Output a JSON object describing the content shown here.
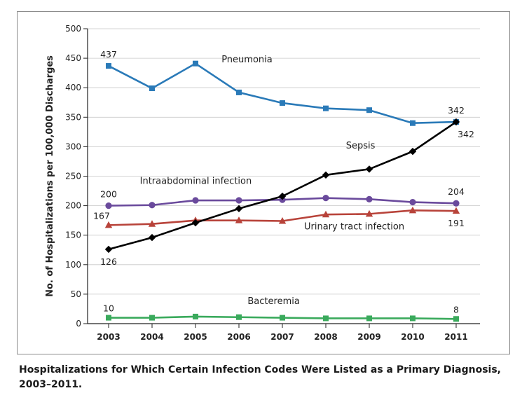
{
  "caption": "Hospitalizations for Which Certain Infection Codes Were Listed as a Primary Diagnosis, 2003–2011.",
  "chart_data": {
    "type": "line",
    "title": "Hospitalizations for Which Certain Infection Codes Were Listed as a Primary Diagnosis, 2003–2011.",
    "xlabel": "",
    "ylabel": "No. of Hospitalizations per 100,000 Discharges",
    "categories": [
      "2003",
      "2004",
      "2005",
      "2006",
      "2007",
      "2008",
      "2009",
      "2010",
      "2011"
    ],
    "ylim": [
      0,
      500
    ],
    "yticks": [
      0,
      50,
      100,
      150,
      200,
      250,
      300,
      350,
      400,
      450,
      500
    ],
    "grid": "horizontal",
    "series": [
      {
        "name": "Pneumonia",
        "color": "#2a7ab8",
        "marker": "square",
        "values": [
          437,
          399,
          441,
          392,
          374,
          365,
          362,
          340,
          342
        ]
      },
      {
        "name": "Sepsis",
        "color": "#000000",
        "marker": "diamond",
        "values": [
          126,
          146,
          171,
          195,
          216,
          252,
          262,
          292,
          342
        ]
      },
      {
        "name": "Intraabdominal infection",
        "color": "#6a4a9c",
        "marker": "circle",
        "values": [
          200,
          201,
          209,
          209,
          210,
          213,
          211,
          206,
          204
        ]
      },
      {
        "name": "Urinary tract infection",
        "color": "#b8433a",
        "marker": "triangle",
        "values": [
          167,
          169,
          175,
          175,
          174,
          185,
          186,
          192,
          191
        ]
      },
      {
        "name": "Bacteremia",
        "color": "#3aaa5c",
        "marker": "square",
        "values": [
          10,
          10,
          12,
          11,
          10,
          9,
          9,
          9,
          8
        ]
      }
    ],
    "data_labels": [
      {
        "text": "437",
        "series": "Pneumonia",
        "x": "2003",
        "value": 437,
        "position": "above"
      },
      {
        "text": "342",
        "series": "Pneumonia",
        "x": "2011",
        "value": 342,
        "position": "above"
      },
      {
        "text": "342",
        "series": "Sepsis",
        "x": "2011",
        "value": 342,
        "position": "below-right"
      },
      {
        "text": "200",
        "series": "Intraabdominal infection",
        "x": "2003",
        "value": 200,
        "position": "above"
      },
      {
        "text": "204",
        "series": "Intraabdominal infection",
        "x": "2011",
        "value": 204,
        "position": "above"
      },
      {
        "text": "167",
        "series": "Urinary tract infection",
        "x": "2003",
        "value": 167,
        "position": "above-left"
      },
      {
        "text": "191",
        "series": "Urinary tract infection",
        "x": "2011",
        "value": 191,
        "position": "below"
      },
      {
        "text": "126",
        "series": "Sepsis",
        "x": "2003",
        "value": 126,
        "position": "below"
      },
      {
        "text": "10",
        "series": "Bacteremia",
        "x": "2003",
        "value": 10,
        "position": "above"
      },
      {
        "text": "8",
        "series": "Bacteremia",
        "x": "2011",
        "value": 8,
        "position": "above"
      }
    ]
  }
}
